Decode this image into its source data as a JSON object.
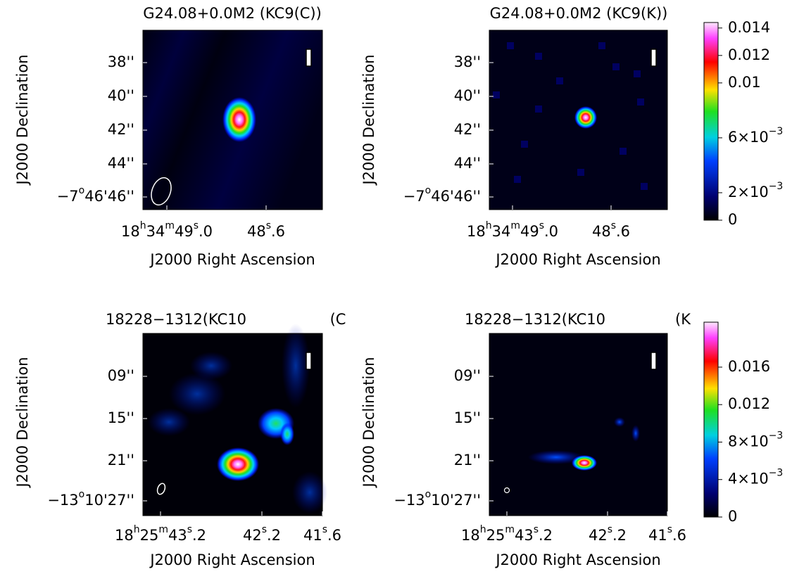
{
  "panels": [
    {
      "title": "G24.08+0.0M2 (KC9(C))",
      "y_axis_label": "J2000 Declination",
      "x_axis_label": "J2000 Right Ascension",
      "y_ticks": [
        [
          "38''"
        ],
        [
          "40''"
        ],
        [
          "42''"
        ],
        [
          "44''"
        ],
        [
          "−7",
          "o",
          "46'46''"
        ]
      ],
      "x_ticks": [
        [
          "18",
          "h",
          "34",
          "m",
          "49",
          "s",
          ".0"
        ],
        [
          "48",
          "s",
          ".6"
        ]
      ]
    },
    {
      "title": "G24.08+0.0M2 (KC9(K))",
      "y_axis_label": "J2000 Declination",
      "x_axis_label": "J2000 Right Ascension",
      "y_ticks": [
        [
          "38''"
        ],
        [
          "40''"
        ],
        [
          "42''"
        ],
        [
          "44''"
        ],
        [
          "−7",
          "o",
          "46'46''"
        ]
      ],
      "x_ticks": [
        [
          "18",
          "h",
          "34",
          "m",
          "49",
          "s",
          ".0"
        ],
        [
          "48",
          "s",
          ".6"
        ]
      ]
    },
    {
      "title": "18228−1312(KC10",
      "title_suffix": "(C",
      "y_axis_label": "J2000 Declination",
      "x_axis_label": "J2000 Right Ascension",
      "y_ticks": [
        [
          "09''"
        ],
        [
          "15''"
        ],
        [
          "21''"
        ],
        [
          "−13",
          "o",
          "10'27''"
        ]
      ],
      "x_ticks": [
        [
          "18",
          "h",
          "25",
          "m",
          "43",
          "s",
          ".2"
        ],
        [
          "42",
          "s",
          ".2"
        ],
        [
          "41",
          "s",
          ".6"
        ]
      ]
    },
    {
      "title": "18228−1312(KC10",
      "title_suffix": "(K",
      "y_axis_label": "J2000 Declination",
      "x_axis_label": "J2000 Right Ascension",
      "y_ticks": [
        [
          "09''"
        ],
        [
          "15''"
        ],
        [
          "21''"
        ],
        [
          "−13",
          "o",
          "10'27''"
        ]
      ],
      "x_ticks": [
        [
          "18",
          "h",
          "25",
          "m",
          "43",
          "s",
          ".2"
        ],
        [
          "42",
          "s",
          ".2"
        ],
        [
          "41",
          "s",
          ".6"
        ]
      ]
    }
  ],
  "colorbars": [
    {
      "lim": [
        0,
        0.0144
      ],
      "ticks": [
        {
          "value": 0.014,
          "label": [
            "0.014"
          ]
        },
        {
          "value": 0.012,
          "label": [
            "0.012"
          ]
        },
        {
          "value": 0.01,
          "label": [
            "0.01"
          ]
        },
        {
          "value": 0.006,
          "label": [
            "6×10",
            "−3"
          ]
        },
        {
          "value": 0.002,
          "label": [
            "2×10",
            "−3"
          ]
        },
        {
          "value": 0,
          "label": [
            "0"
          ]
        }
      ]
    },
    {
      "lim": [
        0,
        0.0208
      ],
      "ticks": [
        {
          "value": 0.016,
          "label": [
            "0.016"
          ]
        },
        {
          "value": 0.012,
          "label": [
            "0.012"
          ]
        },
        {
          "value": 0.008,
          "label": [
            "8×10",
            "−3"
          ]
        },
        {
          "value": 0.004,
          "label": [
            "4×10",
            "−3"
          ]
        },
        {
          "value": 0,
          "label": [
            "0"
          ]
        }
      ]
    }
  ]
}
